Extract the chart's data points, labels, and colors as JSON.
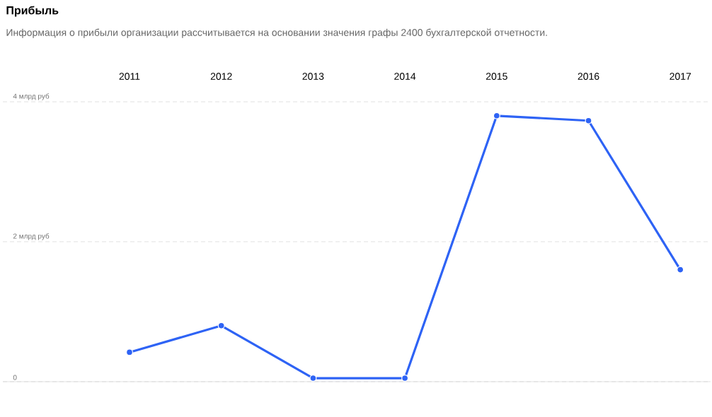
{
  "chart_data": {
    "type": "line",
    "title": "Прибыль",
    "subtitle": "Информация о прибыли организации рассчитывается на основании значения графы 2400 бухгалтерской отчетности.",
    "categories": [
      "2011",
      "2012",
      "2013",
      "2014",
      "2015",
      "2016",
      "2017"
    ],
    "series": [
      {
        "color": "#2e63f5",
        "values": [
          0.42,
          0.8,
          0.05,
          0.05,
          3.8,
          3.73,
          1.6
        ]
      }
    ],
    "ylim": [
      0,
      4
    ],
    "yticks": [
      0,
      {
        "value": 2,
        "label": "2 млрд руб"
      },
      {
        "value": 4,
        "label": "4 млрд руб"
      }
    ],
    "grid": "y",
    "marker": "circle",
    "line_style": "solid"
  }
}
